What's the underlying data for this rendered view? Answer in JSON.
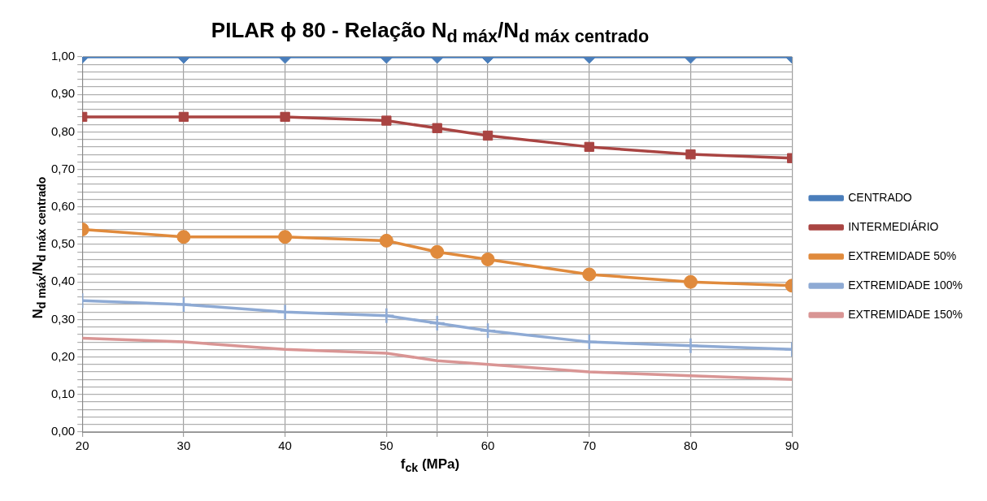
{
  "chart_data": {
    "type": "line",
    "title": "PILAR ϕ 80 - Relação N$_{d máx}$/N$_{d máx centrado}$",
    "xlabel": "f$_{ck}$ (MPa)",
    "ylabel": "N$_{d máx}$/N$_{d máx centrado}$",
    "x": [
      20,
      30,
      40,
      50,
      55,
      60,
      70,
      80,
      90
    ],
    "series": [
      {
        "name": "CENTRADO",
        "color": "#4a7ebb",
        "marker": "diamond",
        "values": [
          1,
          1,
          1,
          1,
          1,
          1,
          1,
          1,
          1
        ]
      },
      {
        "name": "INTERMEDIÁRIO",
        "color": "#a94442",
        "marker": "square",
        "values": [
          0.84,
          0.84,
          0.84,
          0.83,
          0.81,
          0.79,
          0.76,
          0.74,
          0.73
        ]
      },
      {
        "name": "EXTREMIDADE 50%",
        "color": "#e08a3c",
        "marker": "circle",
        "values": [
          0.54,
          0.52,
          0.52,
          0.51,
          0.48,
          0.46,
          0.42,
          0.4,
          0.39
        ]
      },
      {
        "name": "EXTREMIDADE 100%",
        "color": "#8eaad4",
        "marker": "cross",
        "values": [
          0.35,
          0.34,
          0.32,
          0.31,
          0.29,
          0.27,
          0.24,
          0.23,
          0.22
        ]
      },
      {
        "name": "EXTREMIDADE 150%",
        "color": "#d99594",
        "marker": "none",
        "values": [
          0.25,
          0.24,
          0.22,
          0.21,
          0.19,
          0.18,
          0.16,
          0.15,
          0.14
        ]
      }
    ],
    "xlim": [
      20,
      90
    ],
    "xticks": [
      20,
      30,
      40,
      50,
      {
        "value": 55,
        "label": null
      },
      60,
      70,
      80,
      90
    ],
    "ylim": [
      0,
      1
    ],
    "yticks": [
      {
        "value": 0,
        "label": "0,00"
      },
      {
        "value": 0.02,
        "label": null
      },
      {
        "value": 0.04,
        "label": null
      },
      {
        "value": 0.06,
        "label": null
      },
      {
        "value": 0.08,
        "label": null
      },
      {
        "value": 0.1,
        "label": "0,10"
      },
      {
        "value": 0.12,
        "label": null
      },
      {
        "value": 0.14,
        "label": null
      },
      {
        "value": 0.16,
        "label": null
      },
      {
        "value": 0.18,
        "label": null
      },
      {
        "value": 0.2,
        "label": "0,20"
      },
      {
        "value": 0.22,
        "label": null
      },
      {
        "value": 0.24,
        "label": null
      },
      {
        "value": 0.26,
        "label": null
      },
      {
        "value": 0.28,
        "label": null
      },
      {
        "value": 0.3,
        "label": "0,30"
      },
      {
        "value": 0.32,
        "label": null
      },
      {
        "value": 0.34,
        "label": null
      },
      {
        "value": 0.36,
        "label": null
      },
      {
        "value": 0.38,
        "label": null
      },
      {
        "value": 0.4,
        "label": "0,40"
      },
      {
        "value": 0.42,
        "label": null
      },
      {
        "value": 0.44,
        "label": null
      },
      {
        "value": 0.46,
        "label": null
      },
      {
        "value": 0.48,
        "label": null
      },
      {
        "value": 0.5,
        "label": "0,50"
      },
      {
        "value": 0.52,
        "label": null
      },
      {
        "value": 0.54,
        "label": null
      },
      {
        "value": 0.56,
        "label": null
      },
      {
        "value": 0.58,
        "label": null
      },
      {
        "value": 0.6,
        "label": "0,60"
      },
      {
        "value": 0.62,
        "label": null
      },
      {
        "value": 0.64,
        "label": null
      },
      {
        "value": 0.66,
        "label": null
      },
      {
        "value": 0.68,
        "label": null
      },
      {
        "value": 0.7,
        "label": "0,70"
      },
      {
        "value": 0.72,
        "label": null
      },
      {
        "value": 0.74,
        "label": null
      },
      {
        "value": 0.76,
        "label": null
      },
      {
        "value": 0.78,
        "label": null
      },
      {
        "value": 0.8,
        "label": "0,80"
      },
      {
        "value": 0.82,
        "label": null
      },
      {
        "value": 0.84,
        "label": null
      },
      {
        "value": 0.86,
        "label": null
      },
      {
        "value": 0.88,
        "label": null
      },
      {
        "value": 0.9,
        "label": "0,90"
      },
      {
        "value": 0.92,
        "label": null
      },
      {
        "value": 0.94,
        "label": null
      },
      {
        "value": 0.96,
        "label": null
      },
      {
        "value": 0.98,
        "label": null
      },
      {
        "value": 1,
        "label": "1,00"
      }
    ],
    "grid": true,
    "legend": "right",
    "line_style": "solid"
  }
}
